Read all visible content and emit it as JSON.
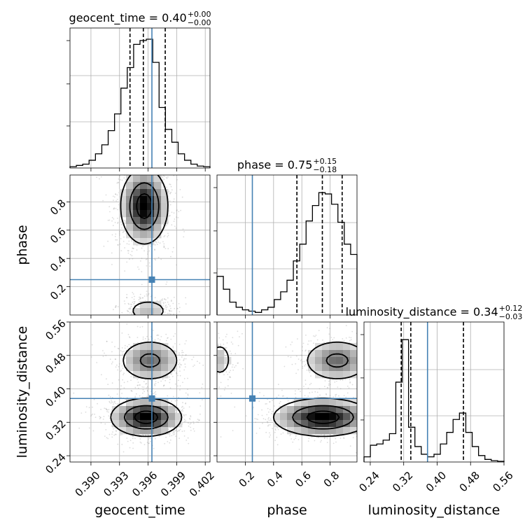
{
  "chart_data": {
    "type": "corner",
    "params": [
      "geocent_time",
      "phase",
      "luminosity_distance"
    ],
    "axis_labels": [
      "geocent_time",
      "phase",
      "luminosity_distance"
    ],
    "truth_color": "#4682b4",
    "truths": [
      0.3964,
      0.25,
      0.377
    ],
    "ranges": [
      [
        0.3878,
        0.4025
      ],
      [
        0.0,
        0.99
      ],
      [
        0.225,
        0.56
      ]
    ],
    "ticks": [
      {
        "values": [
          0.39,
          0.393,
          0.396,
          0.399,
          0.402
        ],
        "labels": [
          "0.390",
          "0.393",
          "0.396",
          "0.399",
          "0.402"
        ]
      },
      {
        "values": [
          0.2,
          0.4,
          0.6,
          0.8
        ],
        "labels": [
          "0.2",
          "0.4",
          "0.6",
          "0.8"
        ]
      },
      {
        "values": [
          0.24,
          0.32,
          0.4,
          0.48,
          0.56
        ],
        "labels": [
          "0.24",
          "0.32",
          "0.40",
          "0.48",
          "0.56"
        ]
      }
    ],
    "titles": [
      {
        "text": "geocent_time = 0.40",
        "sup": "+0.00",
        "sub": "−0.00"
      },
      {
        "text": "phase = 0.75",
        "sup": "+0.15",
        "sub": "−0.18"
      },
      {
        "text": "luminosity_distance = 0.34",
        "sup": "+0.12",
        "sub": "−0.03"
      }
    ],
    "quantiles": [
      [
        0.3941,
        0.3955,
        0.3978
      ],
      [
        0.565,
        0.745,
        0.885
      ],
      [
        0.314,
        0.337,
        0.463
      ]
    ],
    "histograms": [
      {
        "edges_range": [
          0.3878,
          0.4025
        ],
        "counts": [
          0.01,
          0.02,
          0.03,
          0.06,
          0.11,
          0.18,
          0.29,
          0.42,
          0.62,
          0.78,
          0.96,
          0.99,
          1.0,
          0.82,
          0.47,
          0.3,
          0.2,
          0.11,
          0.06,
          0.03,
          0.015,
          0.01
        ]
      },
      {
        "edges_range": [
          0.0,
          0.99
        ],
        "counts": [
          0.3,
          0.2,
          0.1,
          0.06,
          0.04,
          0.03,
          0.02,
          0.04,
          0.06,
          0.12,
          0.18,
          0.27,
          0.42,
          0.55,
          0.73,
          0.85,
          0.95,
          0.94,
          0.86,
          0.72,
          0.55,
          0.47
        ]
      },
      {
        "edges_range": [
          0.225,
          0.56
        ],
        "counts": [
          0.04,
          0.13,
          0.14,
          0.17,
          0.22,
          0.62,
          0.95,
          0.27,
          0.12,
          0.06,
          0.04,
          0.06,
          0.14,
          0.23,
          0.33,
          0.38,
          0.23,
          0.12,
          0.05,
          0.02,
          0.01,
          0.005
        ]
      }
    ],
    "joint_modes": {
      "pair_1_0": [
        {
          "cx": 0.3956,
          "cy": 0.77,
          "sx": 0.0012,
          "sy": 0.13,
          "w": 1.0
        },
        {
          "cx": 0.396,
          "cy": 0.03,
          "sx": 0.0013,
          "sy": 0.05,
          "w": 0.25
        }
      ],
      "pair_2_0": [
        {
          "cx": 0.3958,
          "cy": 0.332,
          "sx": 0.0018,
          "sy": 0.022,
          "w": 1.0
        },
        {
          "cx": 0.3962,
          "cy": 0.468,
          "sx": 0.0016,
          "sy": 0.025,
          "w": 0.55
        }
      ],
      "pair_2_1": [
        {
          "cx": 0.75,
          "cy": 0.332,
          "sx": 0.17,
          "sy": 0.022,
          "w": 1.0
        },
        {
          "cx": 0.85,
          "cy": 0.468,
          "sx": 0.12,
          "sy": 0.025,
          "w": 0.55
        },
        {
          "cx": 0.02,
          "cy": 0.47,
          "sx": 0.05,
          "sy": 0.025,
          "w": 0.25
        }
      ]
    },
    "contour_levels": [
      0.12,
      0.45,
      0.8
    ],
    "grid": true,
    "histogram_style": "step",
    "quantile_line_style": "dashed"
  }
}
